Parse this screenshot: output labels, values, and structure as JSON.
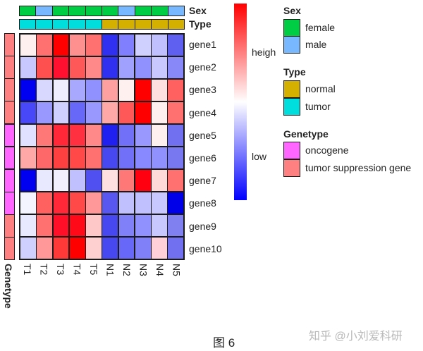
{
  "chart_data": {
    "type": "heatmap",
    "title": "",
    "rows": [
      "gene1",
      "gene2",
      "gene3",
      "gene4",
      "gene5",
      "gene6",
      "gene7",
      "gene8",
      "gene9",
      "gene10"
    ],
    "columns": [
      "T1",
      "T2",
      "T3",
      "T4",
      "T5",
      "N1",
      "N2",
      "N3",
      "N4",
      "N5"
    ],
    "values": [
      [
        0.05,
        0.55,
        1.0,
        0.45,
        0.55,
        -0.85,
        -0.5,
        -0.2,
        -0.25,
        -0.65
      ],
      [
        -0.2,
        0.7,
        0.95,
        0.65,
        0.45,
        -0.85,
        -0.35,
        -0.45,
        -0.2,
        -0.45
      ],
      [
        -1.0,
        -0.15,
        -0.05,
        -0.35,
        -0.45,
        0.35,
        0.05,
        1.0,
        0.1,
        0.6
      ],
      [
        -0.7,
        -0.4,
        -0.2,
        -0.6,
        -0.4,
        0.35,
        0.65,
        1.0,
        0.05,
        0.55
      ],
      [
        -0.1,
        0.55,
        0.85,
        0.8,
        0.45,
        -0.9,
        -0.55,
        -0.4,
        0.05,
        -0.55
      ],
      [
        0.35,
        0.6,
        0.75,
        0.7,
        0.55,
        -0.7,
        -0.55,
        -0.45,
        -0.45,
        -0.5
      ],
      [
        -1.0,
        -0.1,
        -0.05,
        -0.25,
        -0.7,
        0.1,
        0.5,
        0.95,
        0.15,
        0.55
      ],
      [
        -0.05,
        0.6,
        0.85,
        0.7,
        0.4,
        -0.65,
        -0.25,
        -0.25,
        -0.2,
        -1.0
      ],
      [
        -0.1,
        0.55,
        0.95,
        0.95,
        0.2,
        -0.7,
        -0.5,
        -0.45,
        -0.2,
        -0.5
      ],
      [
        -0.2,
        0.4,
        0.75,
        1.0,
        0.2,
        -0.7,
        -0.6,
        -0.5,
        0.2,
        -0.55
      ]
    ],
    "cell_colors": [
      [
        "#fff0f0",
        "#ff7070",
        "#ff0000",
        "#ff9090",
        "#ff7070",
        "#3030f0",
        "#8080ff",
        "#d0d0ff",
        "#c0c0ff",
        "#6060f0"
      ],
      [
        "#c8c8ff",
        "#ff5050",
        "#ff1030",
        "#ff5858",
        "#ff8888",
        "#3030f0",
        "#a0a0ff",
        "#9090ff",
        "#c8c8ff",
        "#8888f8"
      ],
      [
        "#0000f0",
        "#d8d8ff",
        "#eeeeff",
        "#a8a8ff",
        "#9090ff",
        "#ffa0a0",
        "#fff0f0",
        "#ff0000",
        "#ffe0e0",
        "#ff6060"
      ],
      [
        "#4848f8",
        "#9898ff",
        "#d0d0ff",
        "#6868f8",
        "#9898ff",
        "#ffa8a8",
        "#ff5858",
        "#ff0000",
        "#fff0f0",
        "#ff7070"
      ],
      [
        "#e0e0ff",
        "#ff7878",
        "#ff2838",
        "#ff3040",
        "#ff8888",
        "#2020f0",
        "#7070f8",
        "#9898ff",
        "#fff0f0",
        "#7070f0"
      ],
      [
        "#ffa8a8",
        "#ff6868",
        "#ff4040",
        "#ff4848",
        "#ff7070",
        "#4848f0",
        "#7070f8",
        "#8888ff",
        "#9090ff",
        "#7878f0"
      ],
      [
        "#0000f0",
        "#e8e8ff",
        "#f0f0ff",
        "#c0c0ff",
        "#5050f0",
        "#ffe0e0",
        "#ff7878",
        "#ff0010",
        "#ffd8d8",
        "#ff7070"
      ],
      [
        "#f4f4ff",
        "#ff6060",
        "#ff2838",
        "#ff4848",
        "#ff9898",
        "#5858f0",
        "#c0c0ff",
        "#c0c0ff",
        "#c8c8ff",
        "#0000e8"
      ],
      [
        "#e8e8ff",
        "#ff7070",
        "#ff1028",
        "#ff0818",
        "#ffc8c8",
        "#4848f0",
        "#8080f8",
        "#9090ff",
        "#c8c8ff",
        "#8080f0"
      ],
      [
        "#d0d0ff",
        "#ff9898",
        "#ff3838",
        "#ff0000",
        "#ffd0d0",
        "#4848f0",
        "#6868f8",
        "#8080f8",
        "#ffd0d8",
        "#7070f0"
      ]
    ],
    "colorbar": {
      "high_label": "heigh",
      "low_label": "low",
      "colors": [
        "#ff0000",
        "#ffffff",
        "#0000ff"
      ]
    },
    "column_annotations": {
      "Sex": [
        "female",
        "male",
        "female",
        "female",
        "female",
        "female",
        "male",
        "female",
        "female",
        "male"
      ],
      "Type": [
        "tumor",
        "tumor",
        "tumor",
        "tumor",
        "tumor",
        "normal",
        "normal",
        "normal",
        "normal",
        "normal"
      ]
    },
    "row_annotations": {
      "Genetype": [
        "tumor suppression gene",
        "tumor suppression gene",
        "tumor suppression gene",
        "tumor suppression gene",
        "oncogene",
        "oncogene",
        "oncogene",
        "oncogene",
        "tumor suppression gene",
        "tumor suppression gene"
      ]
    },
    "legend_position": "right",
    "grid": true
  },
  "annotation_colors": {
    "female": "#00cc44",
    "male": "#77b8ff",
    "normal": "#d4b000",
    "tumor": "#00dddd",
    "oncogene": "#ff66ff",
    "tumor suppression gene": "#ff8080"
  },
  "labels": {
    "sex": "Sex",
    "type": "Type",
    "genetype": "Genetype",
    "heigh": "heigh",
    "low": "low"
  },
  "legend": {
    "sex": {
      "title": "Sex",
      "items": [
        "female",
        "male"
      ]
    },
    "type": {
      "title": "Type",
      "items": [
        "normal",
        "tumor"
      ]
    },
    "genetype": {
      "title": "Genetype",
      "items": [
        "oncogene",
        "tumor suppression gene"
      ]
    }
  },
  "caption": "图 6",
  "watermark": "知乎 @小刘爱科研"
}
